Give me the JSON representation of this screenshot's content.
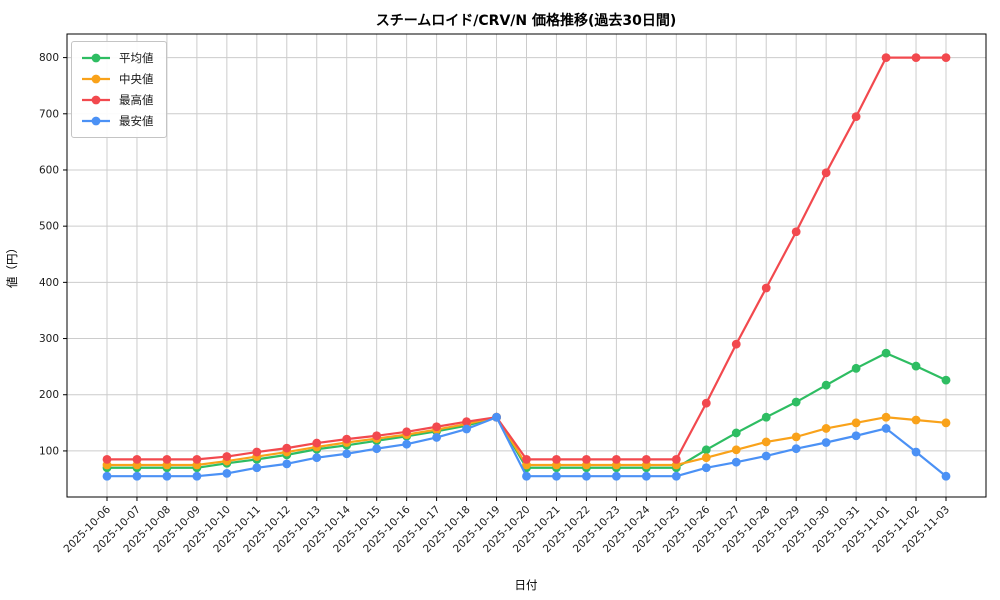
{
  "window": {
    "kind": "matplotlib-style static price chart"
  },
  "chart_data": {
    "type": "line",
    "title": "スチームロイド/CRV/N 価格推移(過去30日間)",
    "xlabel": "日付",
    "ylabel": "値（円）",
    "x": [
      "2025-10-06",
      "2025-10-07",
      "2025-10-08",
      "2025-10-09",
      "2025-10-10",
      "2025-10-11",
      "2025-10-12",
      "2025-10-13",
      "2025-10-14",
      "2025-10-15",
      "2025-10-16",
      "2025-10-17",
      "2025-10-18",
      "2025-10-19",
      "2025-10-20",
      "2025-10-21",
      "2025-10-22",
      "2025-10-23",
      "2025-10-24",
      "2025-10-25",
      "2025-10-26",
      "2025-10-27",
      "2025-10-28",
      "2025-10-29",
      "2025-10-30",
      "2025-10-31",
      "2025-11-01",
      "2025-11-02",
      "2025-11-03"
    ],
    "series": [
      {
        "name": "平均値",
        "color": "#2ebd62",
        "values": [
          70,
          70,
          70,
          70,
          78,
          85,
          93,
          103,
          110,
          118,
          126,
          135,
          145,
          160,
          70,
          70,
          70,
          70,
          70,
          70,
          102,
          132,
          160,
          187,
          217,
          247,
          274,
          251,
          226
        ]
      },
      {
        "name": "中央値",
        "color": "#f9a21a",
        "values": [
          75,
          75,
          75,
          75,
          82,
          90,
          98,
          107,
          115,
          122,
          129,
          138,
          148,
          160,
          75,
          75,
          75,
          75,
          75,
          75,
          88,
          102,
          116,
          125,
          140,
          150,
          160,
          155,
          150
        ]
      },
      {
        "name": "最高値",
        "color": "#f2494e",
        "values": [
          85,
          85,
          85,
          85,
          90,
          98,
          105,
          114,
          121,
          127,
          134,
          143,
          152,
          160,
          85,
          85,
          85,
          85,
          85,
          85,
          185,
          290,
          390,
          490,
          595,
          695,
          800,
          800,
          800
        ]
      },
      {
        "name": "最安値",
        "color": "#4b91f5",
        "values": [
          55,
          55,
          55,
          55,
          60,
          70,
          77,
          88,
          95,
          104,
          112,
          124,
          139,
          160,
          55,
          55,
          55,
          55,
          55,
          55,
          70,
          80,
          91,
          104,
          115,
          127,
          140,
          98,
          55
        ]
      }
    ],
    "yticks": [
      100,
      200,
      300,
      400,
      500,
      600,
      700,
      800
    ],
    "ylim": [
      18,
      842
    ],
    "grid": true,
    "legend_position": "upper-left",
    "colors": {
      "grid": "#cccccc",
      "spine": "#000000",
      "tick_text": "#1a1a1a"
    }
  }
}
